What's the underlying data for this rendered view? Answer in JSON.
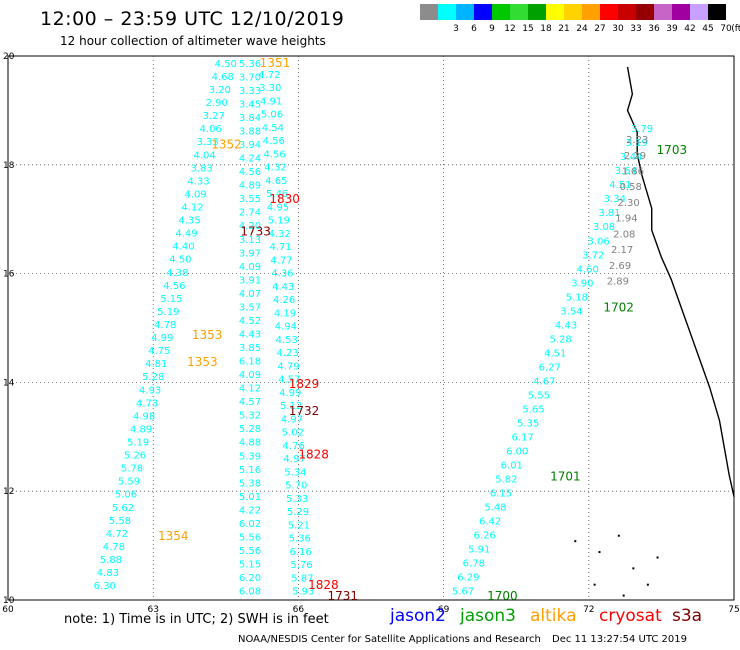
{
  "header": {
    "title": "12:00 – 23:59 UTC 12/10/2019",
    "subtitle": "12 hour collection of altimeter wave heights"
  },
  "legend": {
    "unit": "(ft)",
    "scale": [
      {
        "label": "",
        "color": "#8c8c8c"
      },
      {
        "label": "3",
        "color": "#00ffff"
      },
      {
        "label": "6",
        "color": "#00b4ff"
      },
      {
        "label": "9",
        "color": "#0000ff"
      },
      {
        "label": "12",
        "color": "#00c800"
      },
      {
        "label": "15",
        "color": "#32dc32"
      },
      {
        "label": "18",
        "color": "#00a000"
      },
      {
        "label": "21",
        "color": "#ffff00"
      },
      {
        "label": "24",
        "color": "#ffd200"
      },
      {
        "label": "27",
        "color": "#ffa000"
      },
      {
        "label": "30",
        "color": "#ff0000"
      },
      {
        "label": "33",
        "color": "#c80000"
      },
      {
        "label": "36",
        "color": "#960000"
      },
      {
        "label": "39",
        "color": "#c864c8"
      },
      {
        "label": "42",
        "color": "#a000a0"
      },
      {
        "label": "45",
        "color": "#c8a0ff"
      },
      {
        "label": "70",
        "color": "#000000"
      }
    ]
  },
  "axes": {
    "lon_ticks": [
      "60",
      "63",
      "66",
      "69",
      "72",
      "75"
    ],
    "lat_ticks": [
      "20",
      "18",
      "16",
      "14",
      "12",
      "10"
    ],
    "lon_range": [
      60,
      75
    ],
    "lat_range": [
      10,
      20
    ]
  },
  "track_labels": [
    {
      "text": "1351",
      "lon": 65.2,
      "lat": 19.8,
      "color": "#ffa000"
    },
    {
      "text": "1352",
      "lon": 64.2,
      "lat": 18.3,
      "color": "#ffa000"
    },
    {
      "text": "1830",
      "lon": 65.4,
      "lat": 17.3,
      "color": "#ff0000"
    },
    {
      "text": "1733",
      "lon": 64.8,
      "lat": 16.7,
      "color": "#800000"
    },
    {
      "text": "1353",
      "lon": 63.8,
      "lat": 14.8,
      "color": "#ffa000"
    },
    {
      "text": "1353",
      "lon": 63.7,
      "lat": 14.3,
      "color": "#ffa000"
    },
    {
      "text": "1829",
      "lon": 65.8,
      "lat": 13.9,
      "color": "#ff0000"
    },
    {
      "text": "1732",
      "lon": 65.8,
      "lat": 13.4,
      "color": "#800000"
    },
    {
      "text": "1828",
      "lon": 66.0,
      "lat": 12.6,
      "color": "#ff0000"
    },
    {
      "text": "1354",
      "lon": 63.1,
      "lat": 11.1,
      "color": "#ffa000"
    },
    {
      "text": "1828",
      "lon": 66.2,
      "lat": 10.2,
      "color": "#ff0000"
    },
    {
      "text": "1731",
      "lon": 66.6,
      "lat": 10.0,
      "color": "#800000"
    },
    {
      "text": "1703",
      "lon": 73.4,
      "lat": 18.2,
      "color": "#008000"
    },
    {
      "text": "1702",
      "lon": 72.3,
      "lat": 15.3,
      "color": "#008000"
    },
    {
      "text": "1701",
      "lon": 71.2,
      "lat": 12.2,
      "color": "#008000"
    },
    {
      "text": "1700",
      "lon": 69.9,
      "lat": 10.0,
      "color": "#008000"
    }
  ],
  "tracks": [
    {
      "name": "track-a",
      "color": "#00ffff",
      "start": [
        64.5,
        19.8
      ],
      "end": [
        62.0,
        10.2
      ],
      "values": [
        "4.50",
        "4.68",
        "3.20",
        "2.90",
        "3.27",
        "4.06",
        "3.33",
        "4.04",
        "3.83",
        "4.33",
        "4.09",
        "4.12",
        "4.35",
        "4.49",
        "4.40",
        "4.50",
        "4.38",
        "4.56",
        "5.15",
        "5.19",
        "4.78",
        "4.99",
        "4.75",
        "4.81",
        "5.28",
        "4.93",
        "4.73",
        "4.98",
        "4.89",
        "5.19",
        "5.26",
        "5.78",
        "5.59",
        "5.06",
        "5.62",
        "5.58",
        "4.72",
        "4.78",
        "5.88",
        "4.83",
        "6.30"
      ]
    },
    {
      "name": "track-b",
      "color": "#00ffff",
      "start": [
        65.0,
        19.8
      ],
      "end": [
        65.0,
        10.1
      ],
      "values": [
        "5.36",
        "3.70",
        "3.33",
        "3.45",
        "3.84",
        "3.88",
        "3.94",
        "4.24",
        "4.56",
        "4.89",
        "3.55",
        "2.74",
        "4.20",
        "3.13",
        "3.97",
        "4.09",
        "3.91",
        "4.07",
        "3.57",
        "4.52",
        "4.43",
        "3.85",
        "6.18",
        "4.09",
        "4.12",
        "4.57",
        "5.32",
        "5.28",
        "4.88",
        "5.39",
        "5.16",
        "5.38",
        "5.01",
        "4.22",
        "6.02",
        "5.56",
        "5.56",
        "5.15",
        "6.20",
        "6.08"
      ]
    },
    {
      "name": "track-c",
      "color": "#00ffff",
      "start": [
        65.4,
        19.6
      ],
      "end": [
        66.1,
        10.1
      ],
      "values": [
        "4.72",
        "3.30",
        "4.91",
        "5.06",
        "4.54",
        "4.56",
        "4.56",
        "4.32",
        "4.65",
        "5.46",
        "4.95",
        "5.19",
        "4.32",
        "4.71",
        "4.77",
        "4.36",
        "4.43",
        "4.26",
        "4.19",
        "4.94",
        "4.53",
        "4.23",
        "4.79",
        "4.57",
        "4.99",
        "5.12",
        "4.97",
        "5.02",
        "4.76",
        "4.97",
        "5.34",
        "5.70",
        "5.33",
        "5.29",
        "5.21",
        "5.36",
        "6.16",
        "5.76",
        "5.87",
        "5.93"
      ]
    },
    {
      "name": "track-d",
      "color": "#00ffff",
      "start": [
        73.1,
        18.6
      ],
      "end": [
        69.4,
        10.1
      ],
      "values": [
        "3.79",
        "3.19",
        "3.44",
        "3.64",
        "4.51",
        "3.34",
        "3.81",
        "3.08",
        "3.06",
        "3.72",
        "4.60",
        "3.90",
        "5.18",
        "3.54",
        "4.43",
        "5.28",
        "4.51",
        "6.27",
        "4.67",
        "5.55",
        "5.65",
        "5.35",
        "6.17",
        "6.00",
        "6.01",
        "5.82",
        "6.15",
        "5.48",
        "6.42",
        "6.26",
        "5.91",
        "6.78",
        "6.29",
        "5.67"
      ]
    },
    {
      "name": "track-d-gray",
      "color": "#808080",
      "start": [
        73.0,
        18.4
      ],
      "end": [
        72.6,
        15.8
      ],
      "values": [
        "2.23",
        "2.29",
        "1.86",
        "0.58",
        "2.30",
        "1.94",
        "2.08",
        "2.17",
        "2.69",
        "2.89"
      ]
    }
  ],
  "footer": {
    "note": "note:  1) Time is in UTC;  2) SWH is in feet",
    "satellites": [
      {
        "name": "jason2",
        "color": "#0000ff"
      },
      {
        "name": "jason3",
        "color": "#00a000"
      },
      {
        "name": "altika",
        "color": "#ffa000"
      },
      {
        "name": "cryosat",
        "color": "#ff0000"
      },
      {
        "name": "s3a",
        "color": "#800000"
      }
    ],
    "credit": "NOAA/NESDIS Center for Satellite Applications and Research",
    "timestamp": "Dec 11 13:27:54 UTC 2019"
  }
}
